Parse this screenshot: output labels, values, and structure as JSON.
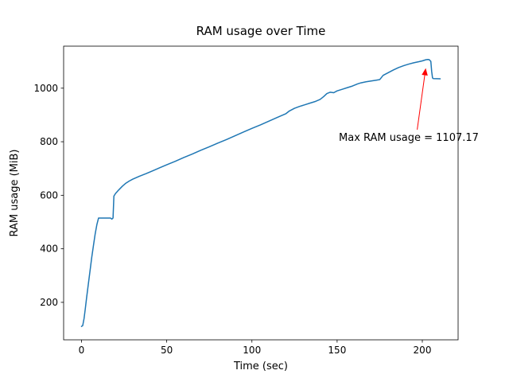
{
  "figure": {
    "background": "#ffffff"
  },
  "chart_data": {
    "type": "line",
    "title": "RAM usage over Time",
    "xlabel": "Time (sec)",
    "ylabel": "RAM usage (MiB)",
    "xlim": [
      -10.5,
      221
    ],
    "ylim": [
      60,
      1157
    ],
    "xticks": [
      0,
      50,
      100,
      150,
      200
    ],
    "yticks": [
      200,
      400,
      600,
      800,
      1000
    ],
    "grid": false,
    "legend": "none",
    "line_color": "#1f77b4",
    "series": [
      {
        "name": "RAM usage",
        "points": [
          [
            0,
            110
          ],
          [
            0.7,
            113
          ],
          [
            1.5,
            140
          ],
          [
            2.2,
            175
          ],
          [
            3,
            218
          ],
          [
            4,
            268
          ],
          [
            5,
            318
          ],
          [
            6,
            368
          ],
          [
            7,
            412
          ],
          [
            8,
            455
          ],
          [
            9,
            490
          ],
          [
            10,
            515
          ],
          [
            17,
            515
          ],
          [
            17.8,
            511
          ],
          [
            18.5,
            515
          ],
          [
            19,
            597
          ],
          [
            20,
            607
          ],
          [
            22,
            621
          ],
          [
            24,
            634
          ],
          [
            26,
            645
          ],
          [
            28,
            653
          ],
          [
            30,
            660
          ],
          [
            34,
            671
          ],
          [
            38,
            681
          ],
          [
            42,
            692
          ],
          [
            46,
            703
          ],
          [
            50,
            714
          ],
          [
            55,
            727
          ],
          [
            60,
            741
          ],
          [
            65,
            754
          ],
          [
            70,
            768
          ],
          [
            75,
            781
          ],
          [
            80,
            795
          ],
          [
            85,
            808
          ],
          [
            90,
            822
          ],
          [
            95,
            836
          ],
          [
            100,
            850
          ],
          [
            105,
            863
          ],
          [
            110,
            877
          ],
          [
            115,
            891
          ],
          [
            120,
            905
          ],
          [
            122,
            915
          ],
          [
            125,
            925
          ],
          [
            128,
            932
          ],
          [
            131,
            938
          ],
          [
            134,
            944
          ],
          [
            137,
            950
          ],
          [
            140,
            958
          ],
          [
            142,
            968
          ],
          [
            144,
            980
          ],
          [
            146,
            985
          ],
          [
            148,
            983
          ],
          [
            150,
            990
          ],
          [
            153,
            996
          ],
          [
            156,
            1002
          ],
          [
            159,
            1008
          ],
          [
            162,
            1016
          ],
          [
            164,
            1020
          ],
          [
            167,
            1024
          ],
          [
            170,
            1027
          ],
          [
            173,
            1030
          ],
          [
            175,
            1032
          ],
          [
            177,
            1048
          ],
          [
            180,
            1058
          ],
          [
            183,
            1068
          ],
          [
            186,
            1077
          ],
          [
            189,
            1084
          ],
          [
            192,
            1090
          ],
          [
            195,
            1095
          ],
          [
            198,
            1099
          ],
          [
            200,
            1102
          ],
          [
            202,
            1106
          ],
          [
            203,
            1107.17
          ],
          [
            204,
            1107
          ],
          [
            205,
            1100
          ],
          [
            205.5,
            1062
          ],
          [
            206,
            1038
          ],
          [
            206.5,
            1036
          ],
          [
            210.5,
            1035
          ]
        ]
      }
    ],
    "max_value": 1107.17,
    "annotation": {
      "text": "Max RAM usage = 1107.17",
      "color": "#ff0000",
      "text_pos": [
        151,
        803
      ],
      "arrow_tail": [
        197,
        845
      ],
      "arrow_tip": [
        202,
        1075
      ]
    }
  }
}
